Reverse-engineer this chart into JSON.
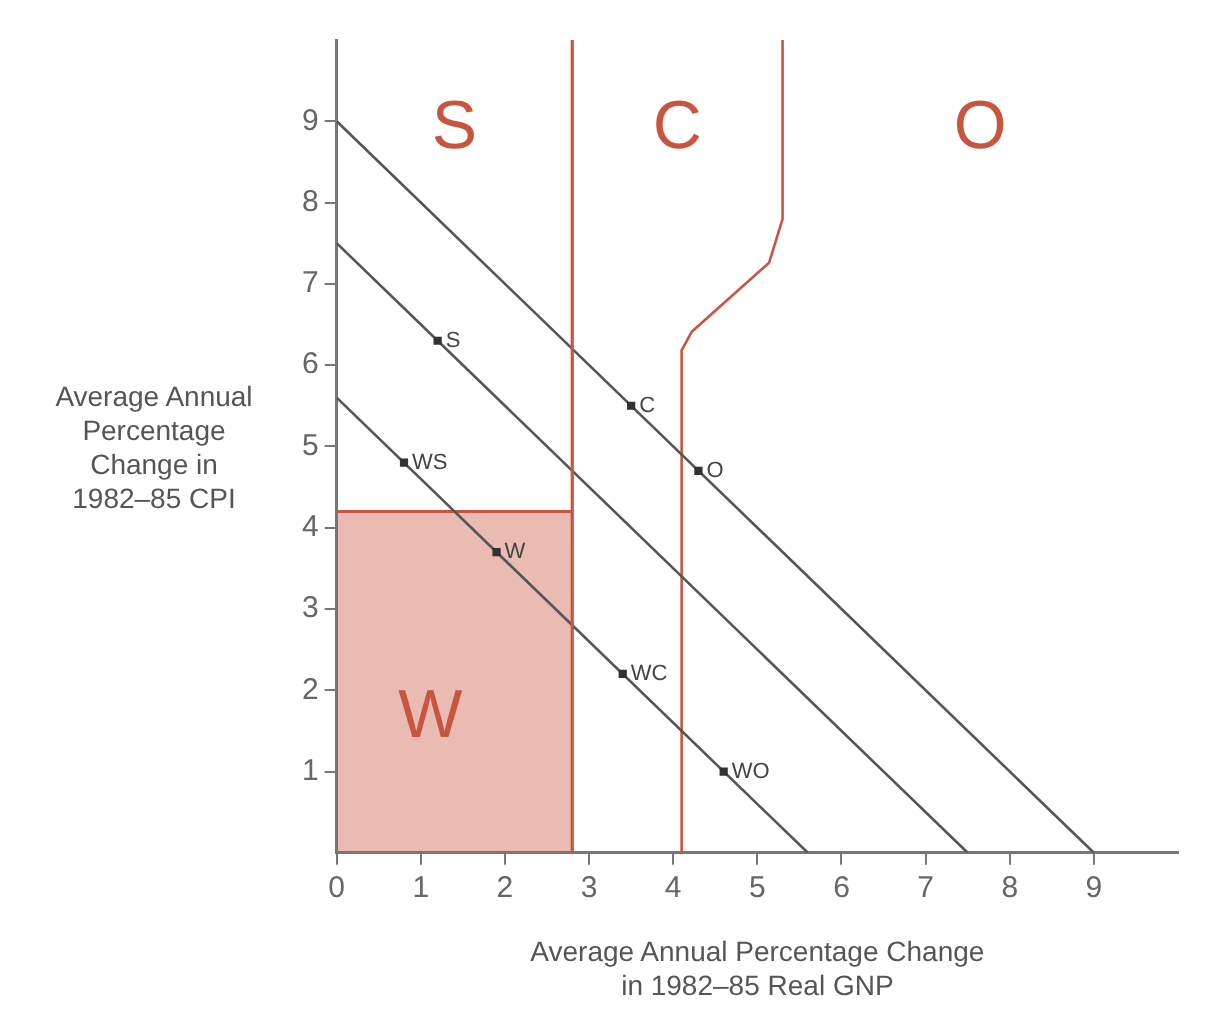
{
  "chart_data": {
    "type": "scatter",
    "xlabel": "Average Annual Percentage Change\nin 1982–85 Real GNP",
    "ylabel": "Average Annual\nPercentage\nChange in\n1982–85 CPI",
    "xlim": [
      0,
      10
    ],
    "ylim": [
      0,
      10
    ],
    "xticks": [
      0,
      1,
      2,
      3,
      4,
      5,
      6,
      7,
      8,
      9
    ],
    "yticks": [
      1,
      2,
      3,
      4,
      5,
      6,
      7,
      8,
      9
    ],
    "grid": false,
    "series": [
      {
        "type": "area",
        "name": "W",
        "color": "#c8553f",
        "x": [
          0,
          2.8
        ],
        "values": [
          4.2,
          4.2
        ]
      },
      {
        "type": "line",
        "color": "#c8553f",
        "x": [
          4.1,
          4.1,
          4.22,
          5.14,
          5.3,
          5.3
        ],
        "values": [
          0,
          6.18,
          6.41,
          7.26,
          7.8,
          10
        ]
      },
      {
        "type": "line",
        "color": "#555555",
        "x": [
          0,
          9
        ],
        "values": [
          9,
          0
        ]
      },
      {
        "type": "line",
        "color": "#555555",
        "x": [
          0,
          7.5
        ],
        "values": [
          7.5,
          0
        ]
      },
      {
        "type": "line",
        "color": "#555555",
        "x": [
          0,
          5.6
        ],
        "values": [
          5.6,
          0
        ]
      },
      {
        "name": "S",
        "color": "#333333",
        "marker": "square",
        "x": [
          1.2
        ],
        "values": [
          6.3
        ]
      },
      {
        "name": "C",
        "color": "#333333",
        "marker": "square",
        "x": [
          3.5
        ],
        "values": [
          5.5
        ]
      },
      {
        "name": "O",
        "color": "#333333",
        "marker": "square",
        "x": [
          4.3
        ],
        "values": [
          4.7
        ]
      },
      {
        "name": "WS",
        "color": "#333333",
        "marker": "square",
        "x": [
          0.8
        ],
        "values": [
          4.8
        ]
      },
      {
        "name": "W",
        "color": "#333333",
        "marker": "square",
        "x": [
          1.9
        ],
        "values": [
          3.7
        ]
      },
      {
        "name": "WC",
        "color": "#333333",
        "marker": "square",
        "x": [
          3.4
        ],
        "values": [
          2.2
        ]
      },
      {
        "name": "WO",
        "color": "#333333",
        "marker": "square",
        "x": [
          4.6
        ],
        "values": [
          1.0
        ]
      }
    ],
    "ref_lines": [
      {
        "axis": "x",
        "value": 2.8,
        "color": "#c8553f"
      }
    ],
    "annotations": [
      "S",
      "C",
      "O"
    ]
  }
}
